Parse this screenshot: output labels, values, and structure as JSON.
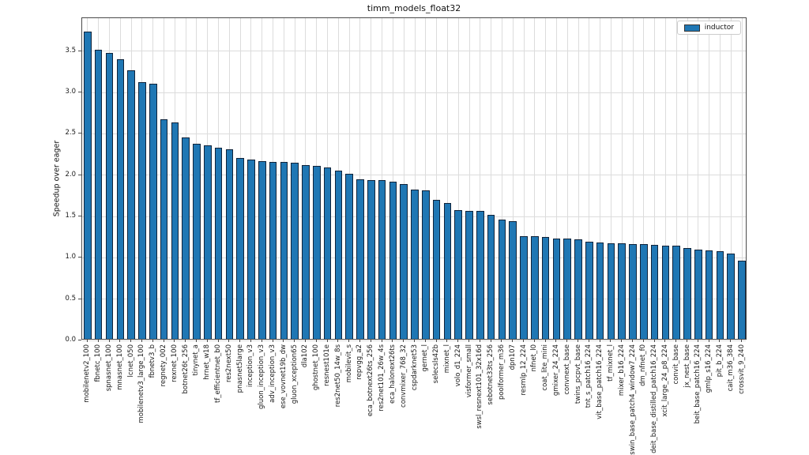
{
  "chart_data": {
    "type": "bar",
    "title": "timm_models_float32",
    "xlabel": "",
    "ylabel": "Speedup over eager",
    "grid": true,
    "legend_position": "upper right",
    "ylim": [
      0,
      3.9
    ],
    "yticks": [
      0.0,
      0.5,
      1.0,
      1.5,
      2.0,
      2.5,
      3.0,
      3.5
    ],
    "bar_edge_color": "#10233a",
    "categories": [
      "mobilenetv2_100",
      "fbnetc_100",
      "spnasnet_100",
      "mnasnet_100",
      "lcnet_050",
      "mobilenetv3_large_100",
      "fbnetv3_b",
      "regnety_002",
      "rexnet_100",
      "botnet26t_256",
      "tinynet_a",
      "hrnet_w18",
      "tf_efficientnet_b0",
      "res2next50",
      "pnasnet5large",
      "inception_v3",
      "gluon_inception_v3",
      "adv_inception_v3",
      "ese_vovnet19b_dw",
      "gluon_xception65",
      "dla102",
      "ghostnet_100",
      "resnest101e",
      "res2net50_14w_8s",
      "mobilevit_s",
      "repvgg_a2",
      "eca_botnext26ts_256",
      "res2net101_26w_4s",
      "eca_halonext26ts",
      "convmixer_768_32",
      "cspdarknet53",
      "gernet_l",
      "selecsls42b",
      "mixnet_l",
      "volo_d1_224",
      "visformer_small",
      "swsl_resnext101_32x16d",
      "sebotnet33ts_256",
      "poolformer_m36",
      "dpn107",
      "resmlp_12_224",
      "nfnet_l0",
      "coat_lite_mini",
      "gmixer_24_224",
      "convnext_base",
      "twins_pcpvt_base",
      "tnt_s_patch16_224",
      "vit_base_patch16_224",
      "tf_mixnet_l",
      "mixer_b16_224",
      "swin_base_patch4_window7_224",
      "dm_nfnet_f0",
      "deit_base_distilled_patch16_224",
      "xcit_large_24_p8_224",
      "convit_base",
      "jx_nest_base",
      "beit_base_patch16_224",
      "gmlp_s16_224",
      "pit_b_224",
      "cait_m36_384",
      "crossvit_9_240"
    ],
    "series": [
      {
        "name": "inductor",
        "color": "#1f77b4",
        "values": [
          3.72,
          3.5,
          3.46,
          3.38,
          3.25,
          3.11,
          3.09,
          2.66,
          2.62,
          2.44,
          2.36,
          2.34,
          2.31,
          2.29,
          2.19,
          2.17,
          2.15,
          2.14,
          2.14,
          2.13,
          2.1,
          2.09,
          2.07,
          2.04,
          2.0,
          1.93,
          1.92,
          1.92,
          1.9,
          1.87,
          1.81,
          1.8,
          1.68,
          1.64,
          1.56,
          1.55,
          1.55,
          1.5,
          1.44,
          1.42,
          1.24,
          1.24,
          1.23,
          1.21,
          1.21,
          1.2,
          1.18,
          1.17,
          1.16,
          1.16,
          1.15,
          1.15,
          1.14,
          1.13,
          1.13,
          1.1,
          1.08,
          1.07,
          1.06,
          1.03,
          0.95
        ]
      }
    ]
  }
}
